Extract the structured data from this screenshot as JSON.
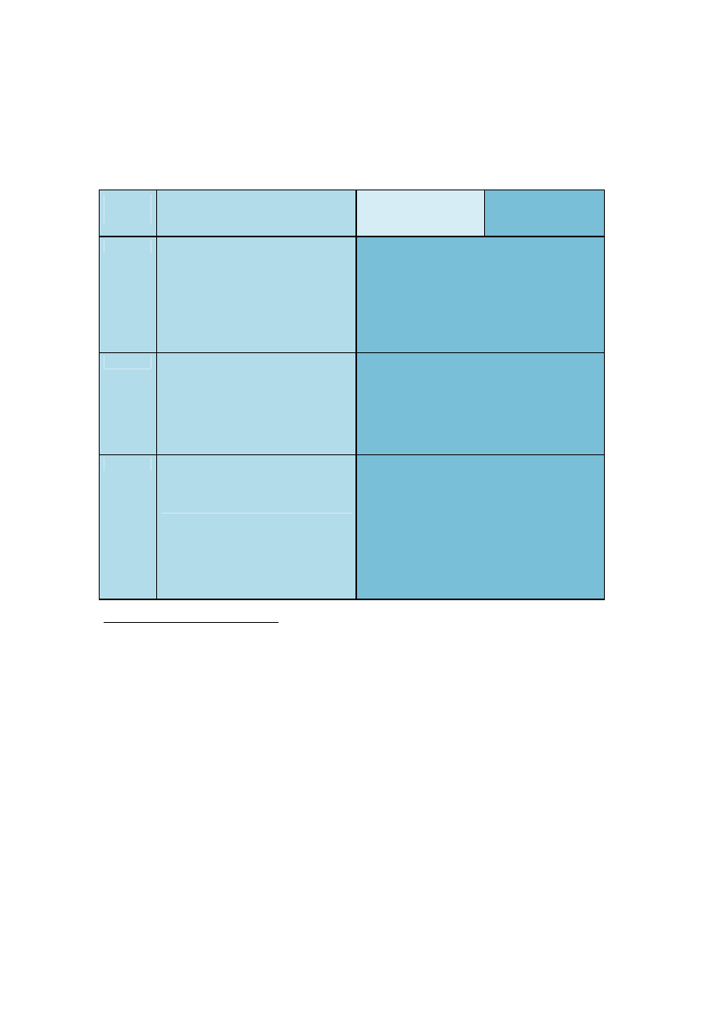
{
  "colors": {
    "light_fill": "#b3dcea",
    "pale_fill": "#d6edf5",
    "medium_fill": "#79bfd8",
    "border": "#000000"
  }
}
